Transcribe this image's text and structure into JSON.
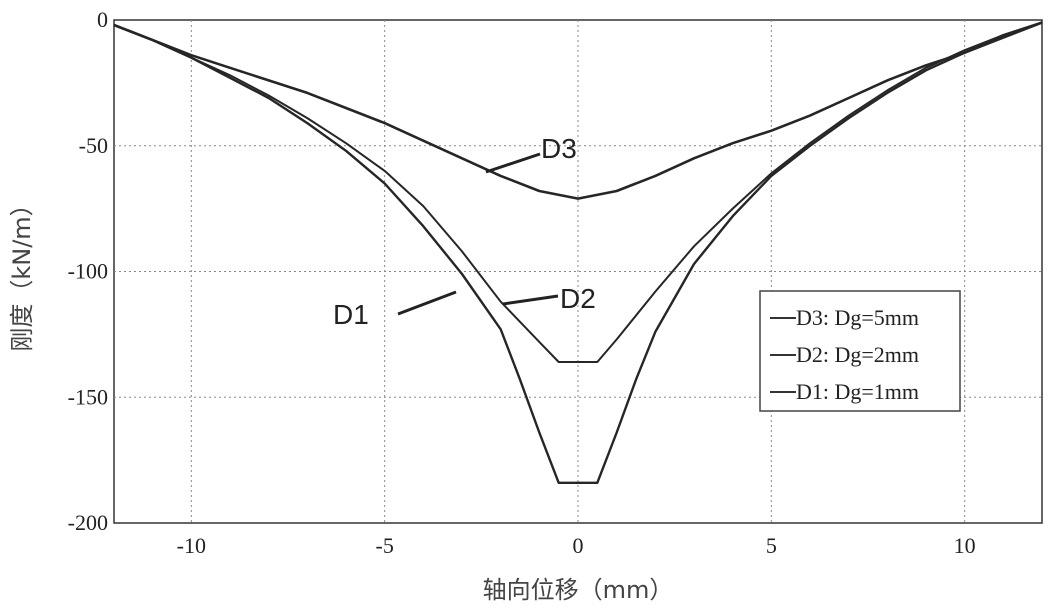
{
  "chart_data": {
    "type": "line",
    "xlabel": "轴向位移（mm）",
    "ylabel": "刚度（kN/m）",
    "xlim": [
      -12,
      12
    ],
    "ylim": [
      -200,
      0
    ],
    "xticks": [
      -10,
      -5,
      0,
      5,
      10
    ],
    "xtick_labels": [
      "-10",
      "-5",
      "0",
      "5",
      "10"
    ],
    "yticks": [
      0,
      -50,
      -100,
      -150,
      -200
    ],
    "ytick_labels": [
      "0",
      "-50",
      "-100",
      "-150",
      "-200"
    ],
    "grid": true,
    "legend_position": "right",
    "series": [
      {
        "name": "D3: Dg=5mm",
        "annotation": "D3",
        "x": [
          -12,
          -11,
          -10,
          -9,
          -8,
          -7,
          -6,
          -5,
          -4,
          -3,
          -2,
          -1,
          0,
          1,
          2,
          3,
          4,
          5,
          6,
          7,
          8,
          9,
          10,
          11,
          12
        ],
        "y": [
          -2,
          -8,
          -14,
          -19,
          -24,
          -29,
          -35,
          -41,
          -48,
          -55,
          -62,
          -68,
          -71,
          -68,
          -62,
          -55,
          -49,
          -44,
          -38,
          -31,
          -24,
          -18,
          -13,
          -7,
          -1
        ]
      },
      {
        "name": "D2: Dg=2mm",
        "annotation": "D2",
        "x": [
          -12,
          -11,
          -10,
          -9,
          -8,
          -7,
          -6,
          -5,
          -4,
          -3,
          -2,
          -1,
          -0.5,
          0.5,
          1,
          2,
          3,
          4,
          5,
          6,
          7,
          8,
          9,
          10,
          11,
          12
        ],
        "y": [
          -2,
          -8,
          -15,
          -22,
          -30,
          -39,
          -49,
          -60,
          -74,
          -92,
          -112,
          -128,
          -136,
          -136,
          -127,
          -108,
          -90,
          -75,
          -61,
          -49,
          -38,
          -28,
          -19,
          -12,
          -6,
          -1
        ]
      },
      {
        "name": "D1: Dg=1mm",
        "annotation": "D1",
        "x": [
          -12,
          -11,
          -10,
          -9,
          -8,
          -7,
          -6,
          -5,
          -4,
          -3,
          -2,
          -1.5,
          -1,
          -0.5,
          0.5,
          1,
          1.5,
          2,
          3,
          4,
          5,
          6,
          7,
          8,
          9,
          10,
          11,
          12
        ],
        "y": [
          -2,
          -8,
          -15,
          -23,
          -31,
          -41,
          -52,
          -65,
          -82,
          -101,
          -123,
          -143,
          -164,
          -184,
          -184,
          -164,
          -143,
          -124,
          -97,
          -78,
          -62,
          -50,
          -39,
          -29,
          -20,
          -13,
          -6,
          -1
        ]
      }
    ]
  }
}
